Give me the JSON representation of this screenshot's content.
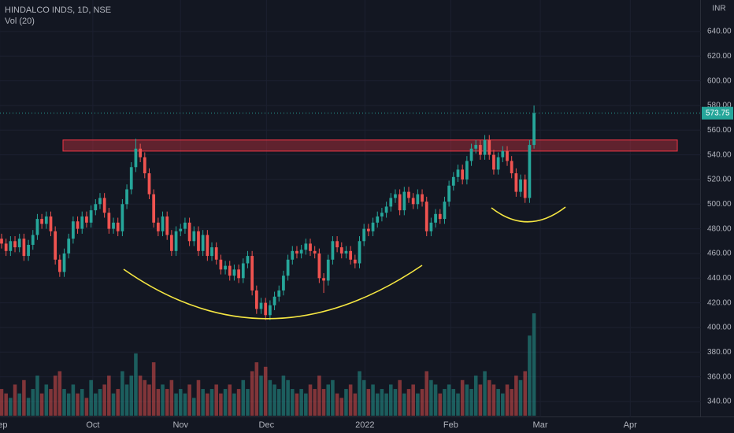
{
  "chart_data": {
    "type": "candlestick",
    "title": "HINDALCO INDS, 1D, NSE",
    "volume_label": "Vol (20)",
    "currency": "INR",
    "up_color": "#26a69a",
    "down_color": "#ef5350",
    "grid": true,
    "ylim": [
      327.2,
      665.5
    ],
    "yticks": [
      {
        "value": 340,
        "label": "340.00"
      },
      {
        "value": 360,
        "label": "360.00"
      },
      {
        "value": 380,
        "label": "380.00"
      },
      {
        "value": 400,
        "label": "400.00"
      },
      {
        "value": 420,
        "label": "420.00"
      },
      {
        "value": 440,
        "label": "440.00"
      },
      {
        "value": 460,
        "label": "460.00"
      },
      {
        "value": 480,
        "label": "480.00"
      },
      {
        "value": 500,
        "label": "500.00"
      },
      {
        "value": 520,
        "label": "520.00"
      },
      {
        "value": 540,
        "label": "540.00"
      },
      {
        "value": 560,
        "label": "560.00"
      },
      {
        "value": 580,
        "label": "580.00"
      },
      {
        "value": 600,
        "label": "600.00"
      },
      {
        "value": 620,
        "label": "620.00"
      },
      {
        "value": 640,
        "label": "640.00"
      }
    ],
    "xlim": [
      -0.35,
      156.3
    ],
    "xticks": [
      {
        "value": -0.4,
        "label": "Sep"
      },
      {
        "value": 20.4,
        "label": "Oct"
      },
      {
        "value": 40,
        "label": "Nov"
      },
      {
        "value": 59.2,
        "label": "Dec"
      },
      {
        "value": 81.2,
        "label": "2022"
      },
      {
        "value": 100.4,
        "label": "Feb"
      },
      {
        "value": 120.4,
        "label": "Mar"
      },
      {
        "value": 140.5,
        "label": "Apr"
      }
    ],
    "resistance_zone": {
      "low": 543,
      "high": 552
    },
    "open": [
      472,
      468,
      462,
      470,
      465,
      472,
      458,
      467,
      475,
      488,
      484,
      490,
      478,
      455,
      445,
      460,
      472,
      486,
      480,
      490,
      485,
      495,
      500,
      505,
      493,
      480,
      485,
      478,
      500,
      512,
      530,
      545,
      538,
      525,
      508,
      485,
      478,
      490,
      475,
      462,
      478,
      480,
      485,
      470,
      478,
      462,
      475,
      458,
      465,
      455,
      447,
      450,
      442,
      447,
      440,
      452,
      458,
      430,
      415,
      420,
      410,
      418,
      425,
      430,
      442,
      455,
      462,
      460,
      463,
      468,
      462,
      460,
      440,
      438,
      455,
      470,
      465,
      460,
      462,
      455,
      452,
      470,
      480,
      478,
      485,
      490,
      493,
      498,
      505,
      508,
      495,
      510,
      505,
      500,
      508,
      502,
      478,
      485,
      492,
      488,
      502,
      515,
      522,
      528,
      520,
      535,
      545,
      548,
      540,
      552,
      540,
      528,
      538,
      543,
      535,
      525,
      510,
      520,
      505,
      548
    ],
    "high": [
      476,
      472,
      474,
      474,
      476,
      476,
      471,
      479,
      492,
      492,
      494,
      494,
      482,
      459,
      464,
      476,
      490,
      490,
      494,
      494,
      499,
      504,
      509,
      509,
      497,
      489,
      489,
      504,
      516,
      534,
      553,
      549,
      542,
      529,
      512,
      489,
      494,
      494,
      479,
      482,
      484,
      489,
      489,
      482,
      482,
      479,
      479,
      469,
      469,
      459,
      454,
      454,
      451,
      451,
      456,
      462,
      462,
      434,
      424,
      424,
      422,
      429,
      434,
      446,
      459,
      466,
      466,
      467,
      472,
      472,
      466,
      464,
      444,
      459,
      474,
      474,
      469,
      466,
      466,
      459,
      474,
      484,
      484,
      489,
      494,
      497,
      502,
      509,
      512,
      512,
      514,
      514,
      509,
      512,
      512,
      506,
      489,
      496,
      496,
      506,
      519,
      526,
      532,
      532,
      539,
      549,
      552,
      552,
      556,
      556,
      544,
      542,
      547,
      547,
      539,
      529,
      524,
      524,
      552,
      580
    ],
    "low": [
      464,
      458,
      458,
      461,
      461,
      454,
      454,
      463,
      471,
      480,
      480,
      474,
      451,
      441,
      441,
      456,
      468,
      476,
      476,
      481,
      481,
      491,
      496,
      489,
      476,
      476,
      474,
      474,
      496,
      508,
      526,
      534,
      521,
      504,
      481,
      474,
      474,
      471,
      458,
      458,
      474,
      476,
      466,
      466,
      458,
      458,
      454,
      454,
      451,
      443,
      443,
      438,
      438,
      436,
      436,
      448,
      426,
      411,
      411,
      406,
      406,
      414,
      421,
      426,
      438,
      451,
      456,
      456,
      459,
      458,
      456,
      436,
      428,
      434,
      451,
      461,
      456,
      456,
      451,
      448,
      448,
      466,
      474,
      474,
      481,
      486,
      489,
      494,
      501,
      491,
      491,
      501,
      496,
      496,
      498,
      474,
      474,
      481,
      484,
      484,
      498,
      511,
      518,
      516,
      516,
      531,
      541,
      536,
      536,
      536,
      524,
      524,
      534,
      531,
      521,
      506,
      506,
      501,
      501,
      545
    ],
    "close": [
      468,
      462,
      470,
      465,
      472,
      458,
      467,
      475,
      488,
      484,
      490,
      478,
      455,
      445,
      460,
      472,
      486,
      480,
      490,
      485,
      495,
      500,
      505,
      493,
      480,
      485,
      478,
      500,
      512,
      530,
      545,
      538,
      525,
      508,
      485,
      478,
      490,
      475,
      462,
      478,
      480,
      485,
      470,
      478,
      462,
      475,
      458,
      465,
      455,
      447,
      450,
      442,
      447,
      440,
      452,
      458,
      430,
      415,
      420,
      410,
      418,
      425,
      430,
      442,
      455,
      462,
      460,
      463,
      468,
      462,
      460,
      440,
      438,
      455,
      470,
      465,
      460,
      462,
      455,
      452,
      470,
      480,
      478,
      485,
      490,
      493,
      498,
      505,
      508,
      495,
      510,
      505,
      500,
      508,
      502,
      478,
      485,
      492,
      488,
      502,
      515,
      522,
      528,
      520,
      535,
      545,
      548,
      540,
      552,
      540,
      528,
      538,
      543,
      535,
      525,
      510,
      520,
      505,
      548,
      573.75
    ],
    "volume": [
      6,
      5,
      4,
      7,
      5,
      8,
      4,
      6,
      9,
      5,
      7,
      6,
      9,
      10,
      6,
      5,
      7,
      5,
      6,
      4,
      8,
      5,
      6,
      7,
      9,
      5,
      6,
      10,
      7,
      9,
      14,
      9,
      8,
      7,
      12,
      6,
      7,
      6,
      8,
      5,
      6,
      5,
      7,
      4,
      8,
      6,
      5,
      6,
      7,
      5,
      6,
      7,
      5,
      6,
      8,
      6,
      10,
      12,
      9,
      11,
      8,
      7,
      6,
      9,
      8,
      6,
      5,
      6,
      5,
      7,
      6,
      9,
      6,
      7,
      8,
      5,
      4,
      6,
      7,
      5,
      10,
      8,
      6,
      7,
      5,
      6,
      5,
      7,
      6,
      8,
      5,
      6,
      7,
      5,
      6,
      10,
      8,
      7,
      5,
      6,
      7,
      6,
      5,
      8,
      7,
      6,
      9,
      7,
      10,
      8,
      7,
      6,
      5,
      7,
      6,
      9,
      8,
      10,
      18,
      23
    ]
  }
}
